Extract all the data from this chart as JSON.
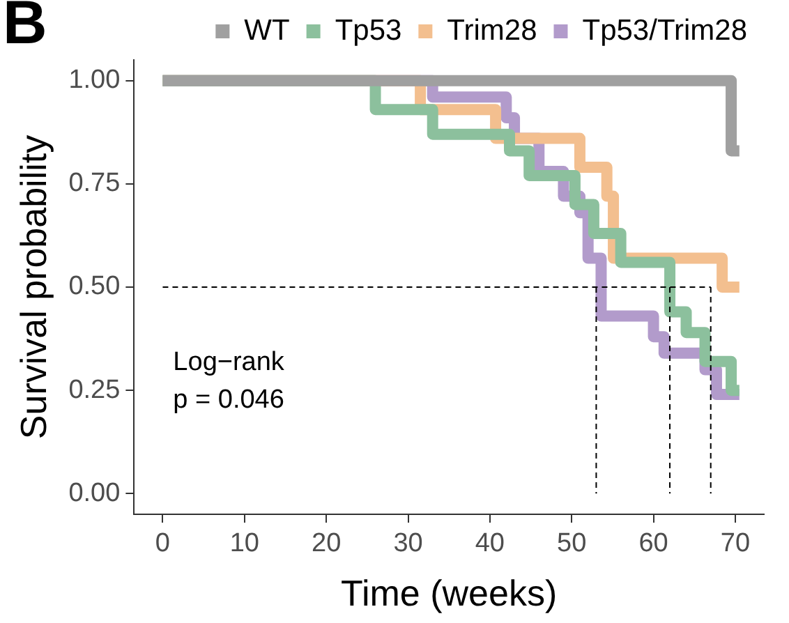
{
  "chart_data": {
    "type": "step",
    "title": "B",
    "xlabel": "Time (weeks)",
    "ylabel": "Survival probability",
    "series": [
      {
        "name": "WT",
        "color": "#a0a0a0",
        "x": [
          0,
          69.5,
          70.5
        ],
        "values": [
          1,
          0.83,
          0.83
        ]
      },
      {
        "name": "Tp53",
        "color": "#8cc09d",
        "x": [
          0,
          26,
          33,
          42.4,
          44.8,
          50.4,
          52.7,
          56,
          62,
          64,
          66.3,
          69.5,
          70.5
        ],
        "values": [
          1,
          0.93,
          0.87,
          0.83,
          0.77,
          0.7,
          0.63,
          0.56,
          0.44,
          0.39,
          0.32,
          0.25,
          0.25
        ]
      },
      {
        "name": "Trim28",
        "color": "#f3bf8f",
        "x": [
          0,
          31.5,
          40.7,
          51,
          54.3,
          55.1,
          68.4,
          70.5
        ],
        "values": [
          1,
          0.93,
          0.86,
          0.79,
          0.72,
          0.57,
          0.5,
          0.5
        ]
      },
      {
        "name": "Tp53/Trim28",
        "color": "#b29bcb",
        "x": [
          0,
          33,
          42,
          43,
          46,
          49,
          51,
          52,
          53.6,
          60,
          61.3,
          66.3,
          67.7,
          70.5
        ],
        "values": [
          1,
          0.96,
          0.91,
          0.86,
          0.78,
          0.72,
          0.68,
          0.57,
          0.43,
          0.38,
          0.34,
          0.3,
          0.24,
          0.24
        ]
      }
    ],
    "xlim": [
      -3.5,
      73.5
    ],
    "xticks": [
      0,
      10,
      20,
      30,
      40,
      50,
      60,
      70
    ],
    "ylim": [
      -0.05,
      1.05
    ],
    "yticks": [
      {
        "value": 0,
        "label": "0.00"
      },
      {
        "value": 0.25,
        "label": "0.25"
      },
      {
        "value": 0.5,
        "label": "0.50"
      },
      {
        "value": 0.75,
        "label": "0.75"
      },
      {
        "value": 1,
        "label": "1.00"
      }
    ],
    "ref_lines": [
      {
        "axis": "y",
        "value": 0.5,
        "line_style": "dashed",
        "color": "#000000"
      },
      {
        "axis": "x",
        "value": 53,
        "line_style": "dashed",
        "color": "#000000"
      },
      {
        "axis": "x",
        "value": 62,
        "line_style": "dashed",
        "color": "#000000"
      },
      {
        "axis": "x",
        "value": 67,
        "line_style": "dashed",
        "color": "#000000"
      }
    ],
    "annotations": [
      "Log−rank",
      "p = 0.046"
    ],
    "grid": false,
    "legend": "top",
    "marker": "none",
    "line_style": "solid"
  }
}
